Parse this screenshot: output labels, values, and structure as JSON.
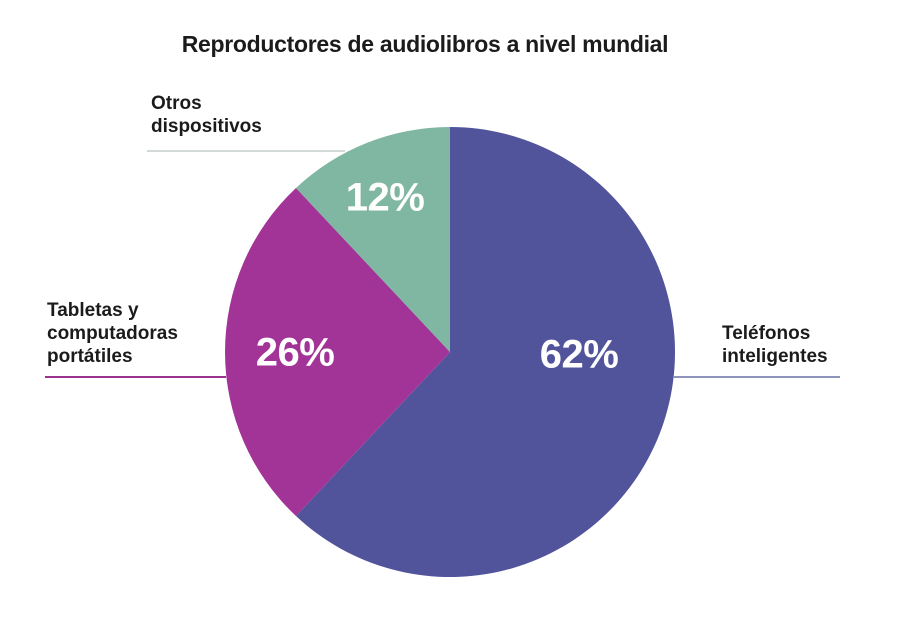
{
  "page": {
    "background": "#FFFFFF",
    "text_color": "#1B1B1B"
  },
  "header": {
    "title": "Reproductores de audiolibros a nivel mundial"
  },
  "chart_data": {
    "type": "pie",
    "title": "Reproductores de audiolibros a nivel mundial",
    "unit": "%",
    "direction": "clockwise",
    "start_angle_deg": 0,
    "legend_position": "outside-callout-labels",
    "value_labels": "inside-white-bold",
    "slices": [
      {
        "label": "Teléfonos inteligentes",
        "label_lines": [
          "Teléfonos",
          "inteligentes"
        ],
        "value": 62,
        "display": "62%",
        "color": "#51549B",
        "callout_line_color": "#8F94BD"
      },
      {
        "label": "Tabletas y computadoras portátiles",
        "label_lines": [
          "Tabletas y",
          "computadoras",
          "portátiles"
        ],
        "value": 26,
        "display": "26%",
        "color": "#A23397",
        "callout_line_color": "#9A3390"
      },
      {
        "label": "Otros dispositivos",
        "label_lines": [
          "Otros",
          "dispositivos"
        ],
        "value": 12,
        "display": "12%",
        "color": "#80B7A2",
        "callout_line_color": "#D4D9DA"
      }
    ]
  }
}
